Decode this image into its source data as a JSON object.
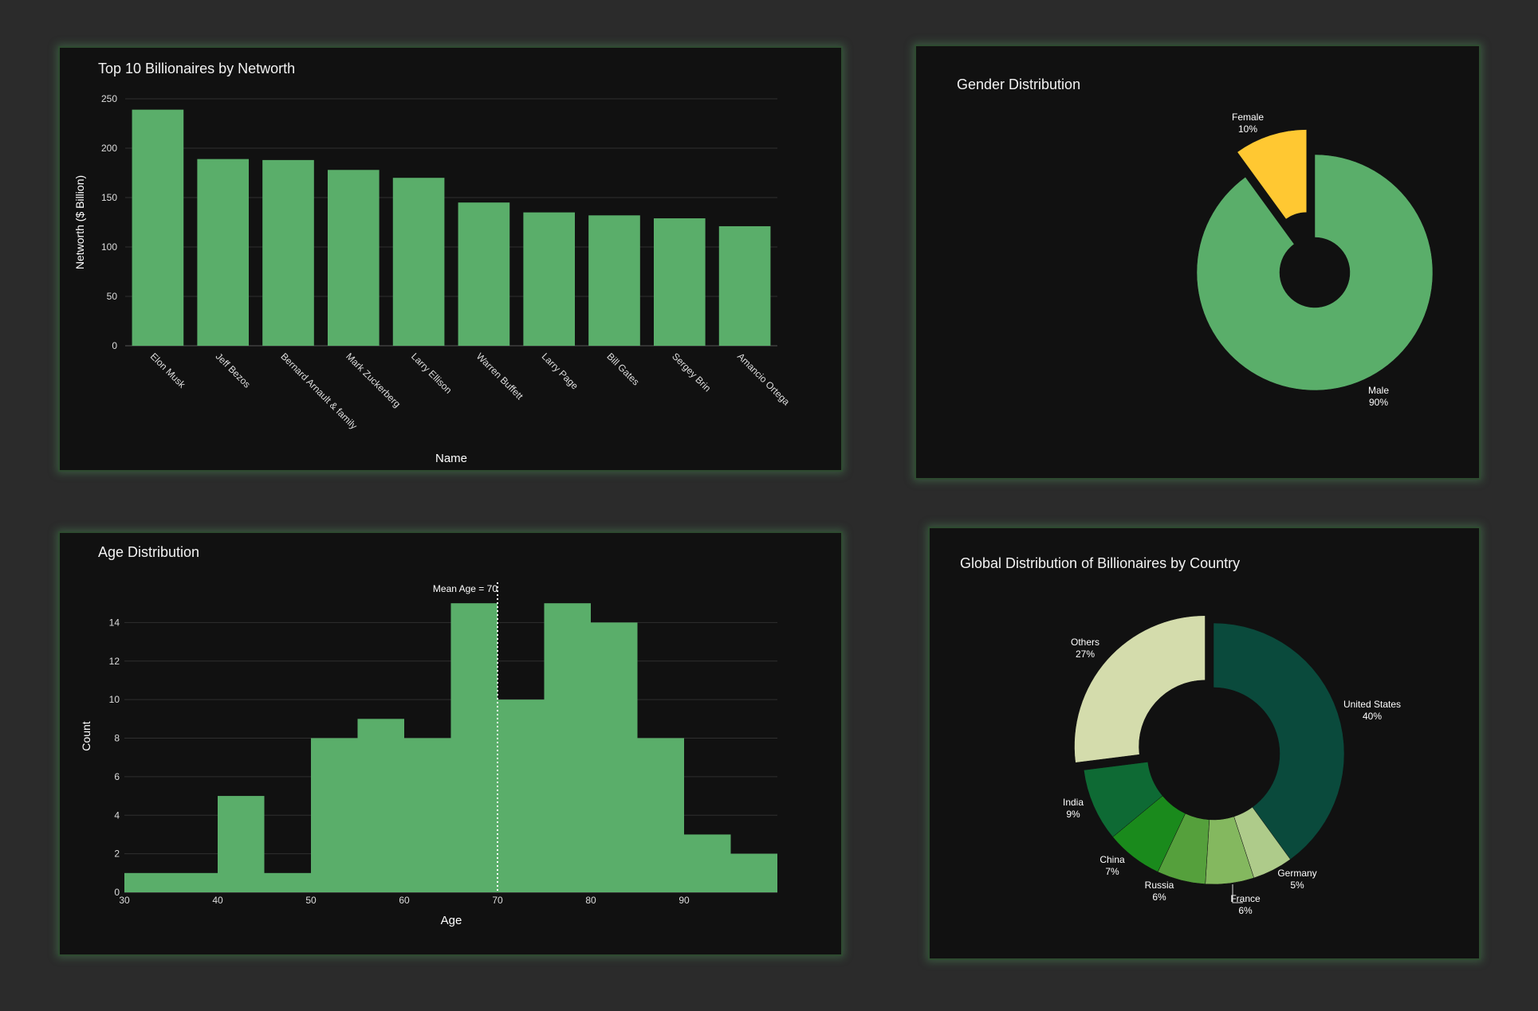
{
  "colors": {
    "background": "#2b2b2b",
    "panel": "#111111",
    "bar_green": "#5aae6a",
    "female_yellow": "#ffc832",
    "grid": "#2f2f2f",
    "text": "#ffffff"
  },
  "chart_data": [
    {
      "type": "bar",
      "title": "Top 10 Billionaires by Networth",
      "xlabel": "Name",
      "ylabel": "Networth ($ Billion)",
      "ylim": [
        0,
        250
      ],
      "yticks": [
        "0",
        "50",
        "100",
        "150",
        "200",
        "250"
      ],
      "grid": true,
      "categories": [
        "Elon Musk",
        "Jeff Bezos",
        "Bernard Arnault & family",
        "Mark Zuckerberg",
        "Larry Ellison",
        "Warren Buffett",
        "Larry Page",
        "Bill Gates",
        "Sergey Brin",
        "Amancio Ortega"
      ],
      "values": [
        239,
        189,
        188,
        178,
        170,
        145,
        135,
        132,
        129,
        121
      ],
      "color": "#5aae6a"
    },
    {
      "type": "pie",
      "title": "Gender Distribution",
      "donut": true,
      "labels": [
        "Male",
        "Female"
      ],
      "values": [
        90,
        10
      ],
      "percent_labels": [
        "90%",
        "10%"
      ],
      "colors": [
        "#5aae6a",
        "#ffc832"
      ],
      "pulled": [
        "Female"
      ]
    },
    {
      "type": "bar",
      "subtype": "histogram",
      "title": "Age Distribution",
      "xlabel": "Age",
      "ylabel": "Count",
      "xlim": [
        30,
        100
      ],
      "ylim": [
        0,
        16
      ],
      "xticks": [
        "30",
        "40",
        "50",
        "60",
        "70",
        "80",
        "90"
      ],
      "yticks": [
        "0",
        "2",
        "4",
        "6",
        "8",
        "10",
        "12",
        "14"
      ],
      "bin_width": 5,
      "bins": [
        30,
        35,
        40,
        45,
        50,
        55,
        60,
        65,
        70,
        75,
        80,
        85,
        90,
        95
      ],
      "counts": [
        1,
        1,
        5,
        1,
        8,
        9,
        8,
        15,
        10,
        15,
        14,
        8,
        3,
        2
      ],
      "mean_line": {
        "x": 70,
        "label": "Mean Age = 70"
      },
      "color": "#5aae6a"
    },
    {
      "type": "pie",
      "title": "Global Distribution of Billionaires by Country",
      "donut": true,
      "labels": [
        "United States",
        "Germany",
        "France",
        "Russia",
        "China",
        "India",
        "Others"
      ],
      "values": [
        40,
        5,
        6,
        6,
        7,
        9,
        27
      ],
      "percent_labels": [
        "40%",
        "5%",
        "6%",
        "6%",
        "7%",
        "9%",
        "27%"
      ],
      "colors": [
        "#0a4a3c",
        "#aecb8a",
        "#84b85f",
        "#55a03c",
        "#1a8a1c",
        "#0e6a34",
        "#d4dcac"
      ],
      "pulled": [
        "Others"
      ]
    }
  ]
}
